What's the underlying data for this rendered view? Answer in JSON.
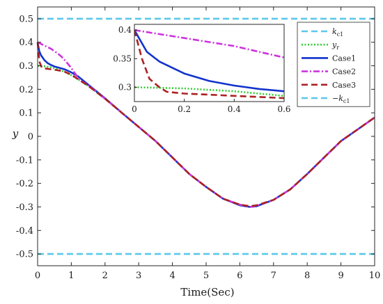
{
  "chart_data": {
    "type": "line",
    "xlabel": "Time(Sec)",
    "ylabel": "y",
    "xlim": [
      0,
      10
    ],
    "ylim": [
      -0.55,
      0.55
    ],
    "xticks": [
      "0",
      "1",
      "2",
      "3",
      "4",
      "5",
      "6",
      "7",
      "8",
      "9",
      "10"
    ],
    "yticks": [
      "0.5",
      "0.4",
      "0.3",
      "0.2",
      "0.1",
      "0",
      "-0.1",
      "-0.2",
      "-0.3",
      "-0.4",
      "-0.5"
    ],
    "legend_position": "top-right",
    "series": [
      {
        "name": "k_c1",
        "legend": {
          "main": "k",
          "sub": "c1"
        },
        "style": "dashed",
        "color": "#5bc8ea",
        "x": [
          0,
          10
        ],
        "y": [
          0.5,
          0.5
        ]
      },
      {
        "name": "y_r",
        "legend": {
          "main": "y",
          "sub": "r"
        },
        "style": "dotted",
        "color": "#33cc33",
        "x": [
          0,
          0.2,
          0.4,
          0.6,
          0.8,
          1,
          1.5,
          2,
          2.5,
          3,
          3.5,
          4,
          4.5,
          5,
          5.5,
          6,
          6.3,
          6.5,
          7,
          7.5,
          8,
          8.5,
          9,
          9.5,
          10
        ],
        "y": [
          0.3,
          0.298,
          0.293,
          0.285,
          0.274,
          0.26,
          0.215,
          0.16,
          0.1,
          0.04,
          -0.02,
          -0.09,
          -0.16,
          -0.215,
          -0.265,
          -0.29,
          -0.3,
          -0.295,
          -0.27,
          -0.225,
          -0.16,
          -0.09,
          -0.02,
          0.03,
          0.08
        ]
      },
      {
        "name": "Case1",
        "legend": {
          "main": "Case1",
          "sub": ""
        },
        "style": "solid",
        "color": "#1133cc",
        "x": [
          0,
          0.05,
          0.1,
          0.2,
          0.3,
          0.4,
          0.5,
          0.6,
          0.8,
          1,
          1.2,
          1.5,
          2,
          2.5,
          3,
          3.5,
          4,
          4.5,
          5,
          5.5,
          6,
          6.3,
          6.5,
          7,
          7.5,
          8,
          8.5,
          9,
          9.5,
          10
        ],
        "y": [
          0.4,
          0.362,
          0.345,
          0.324,
          0.311,
          0.303,
          0.297,
          0.293,
          0.285,
          0.272,
          0.255,
          0.22,
          0.162,
          0.1,
          0.04,
          -0.02,
          -0.09,
          -0.16,
          -0.215,
          -0.265,
          -0.293,
          -0.3,
          -0.297,
          -0.27,
          -0.225,
          -0.16,
          -0.09,
          -0.02,
          0.03,
          0.08
        ]
      },
      {
        "name": "Case2",
        "legend": {
          "main": "Case2",
          "sub": ""
        },
        "style": "dashdot",
        "color": "#cc33dd",
        "x": [
          0,
          0.1,
          0.2,
          0.3,
          0.4,
          0.5,
          0.6,
          0.7,
          0.8,
          0.9,
          1,
          1.1,
          1.2,
          1.3,
          1.5,
          2,
          2.5,
          3,
          3.5,
          4,
          4.5,
          5,
          5.5,
          6,
          6.3,
          6.5,
          7,
          7.5,
          8,
          8.5,
          9,
          9.5,
          10
        ],
        "y": [
          0.4,
          0.393,
          0.386,
          0.379,
          0.372,
          0.362,
          0.352,
          0.34,
          0.325,
          0.308,
          0.29,
          0.27,
          0.25,
          0.235,
          0.218,
          0.16,
          0.1,
          0.04,
          -0.02,
          -0.09,
          -0.16,
          -0.215,
          -0.265,
          -0.29,
          -0.3,
          -0.295,
          -0.27,
          -0.225,
          -0.16,
          -0.09,
          -0.02,
          0.03,
          0.08
        ]
      },
      {
        "name": "Case3",
        "legend": {
          "main": "Case3",
          "sub": ""
        },
        "style": "dashed",
        "color": "#aa2222",
        "x": [
          0,
          0.03,
          0.06,
          0.1,
          0.13,
          0.2,
          0.3,
          0.4,
          0.5,
          0.6,
          0.8,
          1,
          1.5,
          2,
          2.5,
          3,
          3.5,
          4,
          4.5,
          5,
          5.5,
          6,
          6.3,
          6.5,
          7,
          7.5,
          8,
          8.5,
          9,
          9.5,
          10
        ],
        "y": [
          0.4,
          0.35,
          0.315,
          0.3,
          0.292,
          0.289,
          0.287,
          0.285,
          0.283,
          0.281,
          0.275,
          0.262,
          0.215,
          0.16,
          0.1,
          0.04,
          -0.02,
          -0.09,
          -0.16,
          -0.215,
          -0.265,
          -0.29,
          -0.297,
          -0.293,
          -0.27,
          -0.225,
          -0.16,
          -0.09,
          -0.02,
          0.03,
          0.08
        ]
      },
      {
        "name": "-k_c1",
        "legend": {
          "main": "−k",
          "sub": "c1"
        },
        "style": "dashed",
        "color": "#5bc8ea",
        "x": [
          0,
          10
        ],
        "y": [
          -0.5,
          -0.5
        ]
      }
    ],
    "inset": {
      "xlim": [
        0,
        0.6
      ],
      "ylim": [
        0.275,
        0.41
      ],
      "xticks": [
        "0",
        "0.2",
        "0.4",
        "0.6"
      ],
      "yticks": [
        "0.4",
        "0.35",
        "0.3"
      ]
    }
  }
}
